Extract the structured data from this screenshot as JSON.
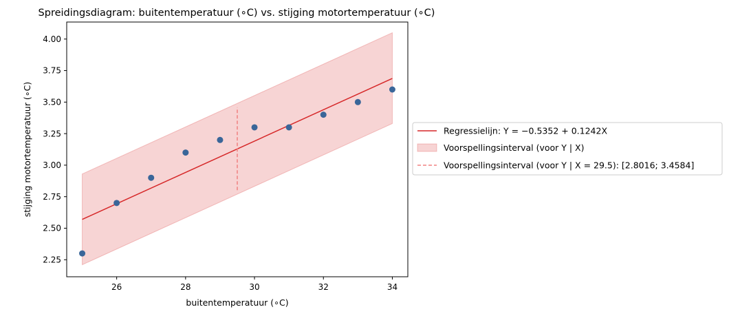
{
  "chart_data": {
    "type": "scatter",
    "title": "Spreidingsdiagram: buitentemperatuur (∘C) vs. stijging motortemperatuur (∘C)",
    "xlabel": "buitentemperatuur (∘C)",
    "ylabel": "stijging motortemperatuur (∘C)",
    "xlim": [
      24.55,
      34.45
    ],
    "ylim": [
      2.115,
      4.135
    ],
    "x_ticks": [
      26,
      28,
      30,
      32,
      34
    ],
    "x_tick_labels": [
      "26",
      "28",
      "30",
      "32",
      "34"
    ],
    "y_ticks": [
      2.25,
      2.5,
      2.75,
      3.0,
      3.25,
      3.5,
      3.75,
      4.0
    ],
    "y_tick_labels": [
      "2.25",
      "2.50",
      "2.75",
      "3.00",
      "3.25",
      "3.50",
      "3.75",
      "4.00"
    ],
    "grid": false,
    "legend_position": "outside-right",
    "points": {
      "x": [
        25,
        26,
        27,
        28,
        29,
        30,
        31,
        32,
        33,
        34
      ],
      "y": [
        2.3,
        2.7,
        2.9,
        3.1,
        3.2,
        3.3,
        3.3,
        3.4,
        3.5,
        3.6
      ],
      "color": "#3a6699"
    },
    "regression": {
      "label": "Regressielijn: Y = −0.5352 + 0.1242X",
      "intercept": -0.5352,
      "slope": 0.1242,
      "x_range": [
        25,
        34
      ],
      "color": "#d62728"
    },
    "prediction_band": {
      "label": "Voorspellingsinterval (voor Y | X)",
      "x": [
        25,
        34
      ],
      "lower": [
        2.21,
        3.33
      ],
      "upper": [
        2.93,
        4.05
      ],
      "color": "#d62728"
    },
    "prediction_at_x": {
      "label": "Voorspellingsinterval (voor Y | X = 29.5): [2.8016; 3.4584]",
      "x": 29.5,
      "lower": 2.8016,
      "upper": 3.4584,
      "color": "#f08080"
    }
  }
}
